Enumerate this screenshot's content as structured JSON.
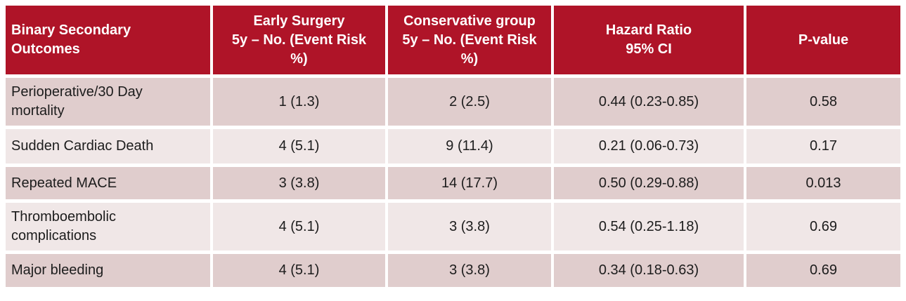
{
  "table": {
    "columns": [
      "Binary Secondary\nOutcomes",
      "Early Surgery\n5y – No. (Event Risk\n%)",
      "Conservative group\n5y – No. (Event Risk\n%)",
      "Hazard Ratio\n95% CI",
      "P-value"
    ],
    "rows": [
      {
        "outcome": "Perioperative/30 Day\nmortality",
        "early_surgery": "1 (1.3)",
        "conservative": "2 (2.5)",
        "hazard_ratio_95ci": "0.44 (0.23-0.85)",
        "p_value": "0.58"
      },
      {
        "outcome": "Sudden Cardiac Death",
        "early_surgery": "4 (5.1)",
        "conservative": "9 (11.4)",
        "hazard_ratio_95ci": "0.21 (0.06-0.73)",
        "p_value": "0.17"
      },
      {
        "outcome": "Repeated MACE",
        "early_surgery": "3 (3.8)",
        "conservative": "14 (17.7)",
        "hazard_ratio_95ci": "0.50 (0.29-0.88)",
        "p_value": "0.013"
      },
      {
        "outcome": "Thromboembolic\ncomplications",
        "early_surgery": "4 (5.1)",
        "conservative": "3 (3.8)",
        "hazard_ratio_95ci": "0.54 (0.25-1.18)",
        "p_value": "0.69"
      },
      {
        "outcome": "Major bleeding",
        "early_surgery": "4 (5.1)",
        "conservative": "3 (3.8)",
        "hazard_ratio_95ci": "0.34 (0.18-0.63)",
        "p_value": "0.69"
      }
    ]
  },
  "colors": {
    "header_bg": "#AF1428",
    "header_text": "#FFFFFF",
    "row_dark_bg": "#E0CDCD",
    "row_light_bg": "#F0E7E7",
    "body_text": "#1C1C1C",
    "grid_gap": "#FFFFFF"
  }
}
